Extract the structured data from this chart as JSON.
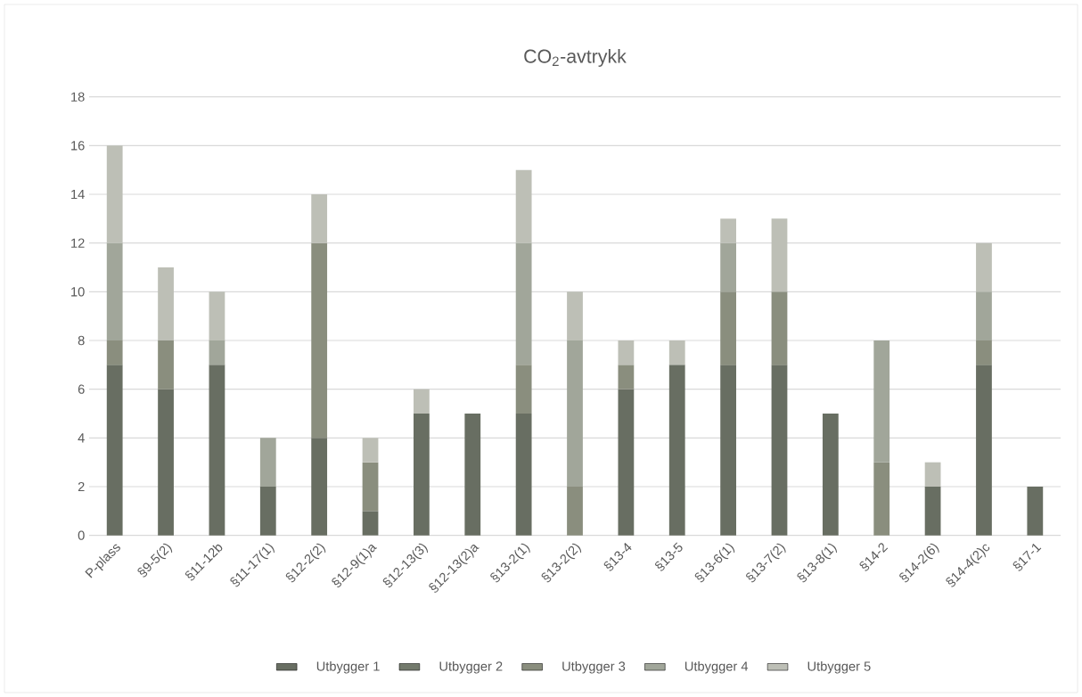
{
  "chart_data": {
    "type": "bar",
    "title": "CO$_{2}$-avtrykk",
    "stacked": true,
    "categories": [
      "P-plass",
      "§9-5(2)",
      "§11-12b",
      "§11-17(1)",
      "§12-2(2)",
      "§12-9(1)a",
      "§12-13(3)",
      "§12-13(2)a",
      "§13-2(1)",
      "§13-2(2)",
      "§13-4",
      "§13-5",
      "§13-6(1)",
      "§13-7(2)",
      "§13-8(1)",
      "§14-2",
      "§14-2(6)",
      "§14-4(2)c",
      "§17-1"
    ],
    "series": [
      {
        "name": "Utbygger 1",
        "color": "#686e62",
        "values": [
          7,
          6,
          7,
          2,
          4,
          1,
          5,
          5,
          5,
          null,
          6,
          7,
          7,
          7,
          5,
          null,
          2,
          7,
          2
        ]
      },
      {
        "name": "Utbygger 2",
        "color": "#737a6c",
        "values": [
          null,
          null,
          null,
          null,
          null,
          null,
          null,
          null,
          null,
          null,
          null,
          null,
          null,
          null,
          null,
          null,
          null,
          null,
          null
        ]
      },
      {
        "name": "Utbygger 3",
        "color": "#8a8e7e",
        "values": [
          1,
          2,
          null,
          null,
          8,
          2,
          null,
          null,
          2,
          2,
          1,
          null,
          3,
          3,
          null,
          3,
          null,
          1,
          null
        ]
      },
      {
        "name": "Utbygger 4",
        "color": "#a1a69a",
        "values": [
          4,
          null,
          1,
          2,
          null,
          null,
          null,
          null,
          5,
          6,
          null,
          null,
          2,
          null,
          null,
          5,
          null,
          2,
          null
        ]
      },
      {
        "name": "Utbygger 5",
        "color": "#bdbfb6",
        "values": [
          4,
          3,
          2,
          null,
          2,
          1,
          1,
          null,
          3,
          2,
          1,
          1,
          1,
          3,
          null,
          null,
          1,
          2,
          null
        ]
      }
    ],
    "ylim": [
      0,
      18
    ],
    "yticks": [
      0,
      2,
      4,
      6,
      8,
      10,
      12,
      14,
      16,
      18
    ],
    "grid": "y",
    "legend": "bottom"
  }
}
